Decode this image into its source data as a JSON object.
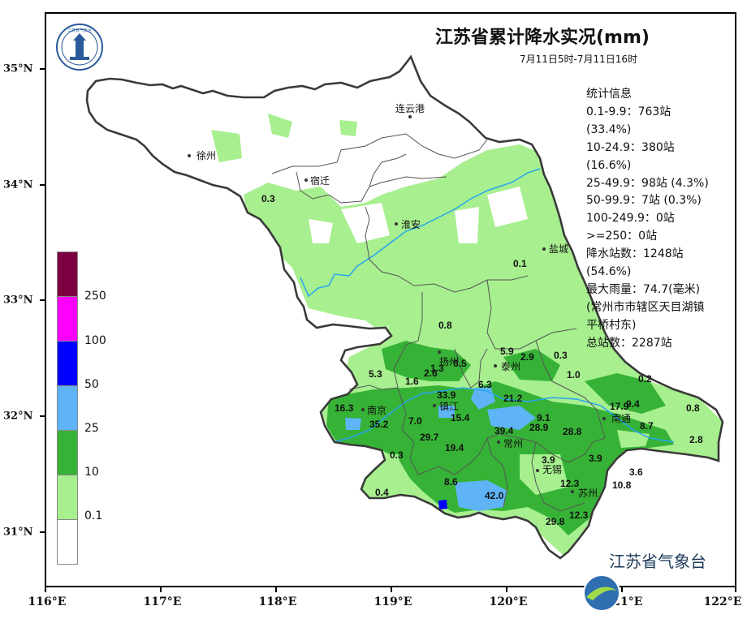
{
  "title": "江苏省累计降水实况(mm)",
  "subtitle": "7月11日5时-7月11日16时",
  "stats": {
    "heading": "统计信息",
    "lines": [
      "0.1-9.9：763站",
      "(33.4%)",
      "10-24.9：380站",
      "(16.6%)",
      "25-49.9：98站 (4.3%)",
      "50-99.9：7站 (0.3%)",
      "100-249.9：0站",
      ">=250：0站",
      "降水站数：1248站",
      "(54.6%)",
      "最大雨量：74.7(毫米)",
      "(常州市市辖区天目湖镇",
      "平桥村东)",
      "总站数：2287站"
    ]
  },
  "legend": {
    "colors": [
      "#7a0040",
      "#ff00ff",
      "#0000ff",
      "#5fb4f7",
      "#36b336",
      "#a7ef8f",
      "#ffffff"
    ],
    "labels": [
      "250",
      "100",
      "50",
      "25",
      "10",
      "0.1"
    ]
  },
  "axes": {
    "x_labels": [
      "116°E",
      "117°E",
      "118°E",
      "119°E",
      "120°E",
      "121°E",
      "122°E"
    ],
    "y_labels": [
      "35°N",
      "34°N",
      "33°N",
      "32°N",
      "31°N"
    ]
  },
  "cities": [
    "连云港",
    "徐州",
    "宿迁",
    "淮安",
    "盐城",
    "扬州",
    "泰州",
    "南京",
    "镇江",
    "常州",
    "无锡",
    "南通",
    "苏州"
  ],
  "values": [
    "0.3",
    "0.1",
    "0.8",
    "5.9",
    "2.9",
    "0.3",
    "5.3",
    "1.3",
    "6.5",
    "2.6",
    "1.6",
    "1.0",
    "0.2",
    "6.3",
    "33.9",
    "21.2",
    "16.3",
    "35.2",
    "7.0",
    "15.4",
    "9.1",
    "17.9",
    "9.4",
    "0.8",
    "8.7",
    "29.7",
    "39.4",
    "28.9",
    "28.8",
    "2.8",
    "19.4",
    "0.3",
    "3.9",
    "3.9",
    "3.6",
    "8.6",
    "12.3",
    "10.8",
    "0.4",
    "42.0",
    "12.3",
    "29.8"
  ],
  "footer": "江苏省气象台",
  "logo_text": "江苏省气象台"
}
